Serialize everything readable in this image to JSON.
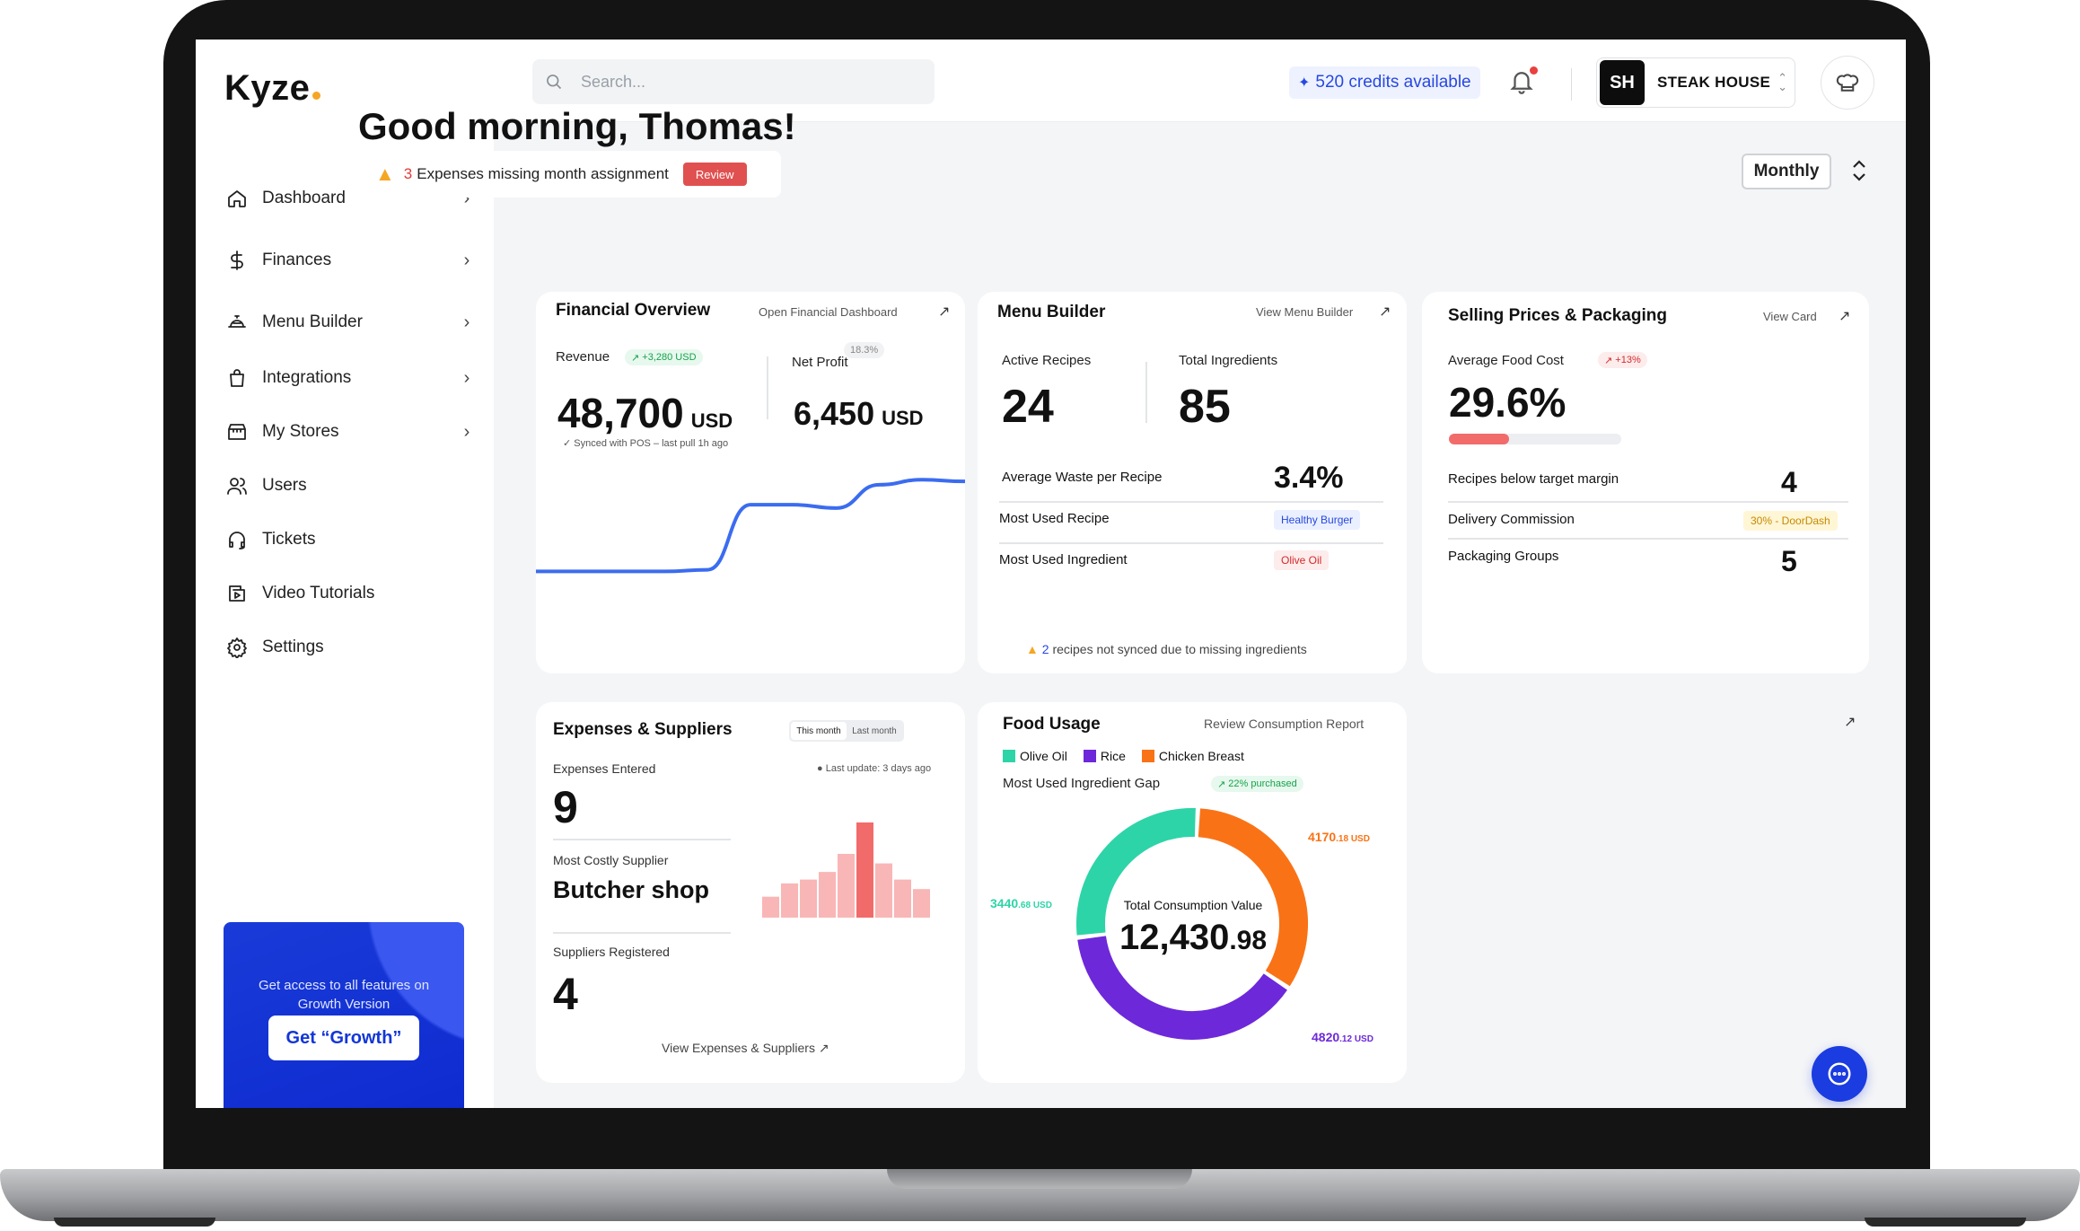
{
  "brand": {
    "name": "Kyze"
  },
  "search": {
    "placeholder": "Search..."
  },
  "credits": {
    "label": "520 credits available"
  },
  "store": {
    "initials": "SH",
    "name": "STEAK HOUSE"
  },
  "sidebar": {
    "items": [
      {
        "label": "Dashboard",
        "icon": "home-icon"
      },
      {
        "label": "Finances",
        "icon": "dollar-icon"
      },
      {
        "label": "Menu Builder",
        "icon": "cloche-icon"
      },
      {
        "label": "Integrations",
        "icon": "bag-icon"
      },
      {
        "label": "My Stores",
        "icon": "store-icon"
      },
      {
        "label": "Users",
        "icon": "users-icon"
      },
      {
        "label": "Tickets",
        "icon": "headset-icon"
      },
      {
        "label": "Video Tutorials",
        "icon": "video-icon"
      },
      {
        "label": "Settings",
        "icon": "gear-icon"
      }
    ],
    "promo": {
      "text": "Get access to all features on Growth Version",
      "button": "Get “Growth”"
    }
  },
  "greeting": "Good morning, Thomas!",
  "alert": {
    "count": "3",
    "text": "Expenses missing month assignment",
    "button": "Review"
  },
  "period": {
    "value": "Monthly"
  },
  "financial": {
    "title": "Financial Overview",
    "link": "Open Financial Dashboard",
    "revenue_label": "Revenue",
    "revenue_badge": "+3,280 USD",
    "revenue_value": "48,700",
    "revenue_unit": "USD",
    "synced": "Synced with POS – last pull 1h ago",
    "profit_label": "Net Profit",
    "profit_badge": "18.3%",
    "profit_value": "6,450",
    "profit_unit": "USD"
  },
  "menu_builder": {
    "title": "Menu Builder",
    "link": "View Menu Builder",
    "active_label": "Active Recipes",
    "active_value": "24",
    "ingredients_label": "Total Ingredients",
    "ingredients_value": "85",
    "waste_label": "Average Waste per Recipe",
    "waste_value": "3.4%",
    "most_recipe_label": "Most Used Recipe",
    "most_recipe_value": "Healthy Burger",
    "most_ingredient_label": "Most Used Ingredient",
    "most_ingredient_value": "Olive Oil",
    "warning_count": "2",
    "warning_text": "recipes not synced due to missing ingredients"
  },
  "selling": {
    "title": "Selling Prices & Packaging",
    "link": "View Card",
    "food_cost_label": "Average Food Cost",
    "food_cost_badge": "+13%",
    "food_cost_value": "29.6%",
    "food_cost_progress": 0.35,
    "below_label": "Recipes below target margin",
    "below_value": "4",
    "delivery_label": "Delivery Commission",
    "delivery_value": "30% - DoorDash",
    "packaging_label": "Packaging Groups",
    "packaging_value": "5"
  },
  "expenses": {
    "title": "Expenses & Suppliers",
    "tabs": [
      "This month",
      "Last month"
    ],
    "entered_label": "Expenses Entered",
    "last_update": "Last update: 3 days ago",
    "entered_value": "9",
    "supplier_label": "Most Costly Supplier",
    "supplier_value": "Butcher shop",
    "registered_label": "Suppliers Registered",
    "registered_value": "4",
    "link": "View Expenses & Suppliers"
  },
  "food_usage": {
    "title": "Food Usage",
    "link": "Review Consumption Report",
    "legend": [
      {
        "name": "Olive Oil",
        "color": "#2dd4a7"
      },
      {
        "name": "Rice",
        "color": "#6d28d9"
      },
      {
        "name": "Chicken Breast",
        "color": "#f97316"
      }
    ],
    "gap_label": "Most Used Ingredient Gap",
    "gap_badge": "22% purchased",
    "center_label": "Total Consumption Value",
    "center_int": "12,430",
    "center_dec": ".98",
    "slices": [
      {
        "main": "4170",
        "dec": ".18 USD",
        "color": "#f97316"
      },
      {
        "main": "4820",
        "dec": ".12 USD",
        "color": "#6d28d9"
      },
      {
        "main": "3440",
        "dec": ".68 USD",
        "color": "#2dd4a7"
      }
    ]
  },
  "chart_data": [
    {
      "type": "line",
      "x": [
        0,
        1,
        2,
        3,
        4,
        5,
        6,
        7,
        8,
        9,
        10
      ],
      "values": [
        10,
        10,
        10,
        10,
        11,
        50,
        50,
        48,
        62,
        65,
        64
      ],
      "xlabel": "",
      "ylabel": ""
    },
    {
      "type": "bar",
      "categories": [
        "1",
        "2",
        "3",
        "4",
        "5",
        "6",
        "7",
        "8",
        "9"
      ],
      "values": [
        22,
        36,
        40,
        48,
        67,
        100,
        57,
        40,
        30
      ],
      "highlight": 5
    },
    {
      "type": "pie",
      "categories": [
        "Chicken Breast",
        "Rice",
        "Olive Oil"
      ],
      "values": [
        4170.18,
        4820.12,
        3440.68
      ]
    }
  ]
}
